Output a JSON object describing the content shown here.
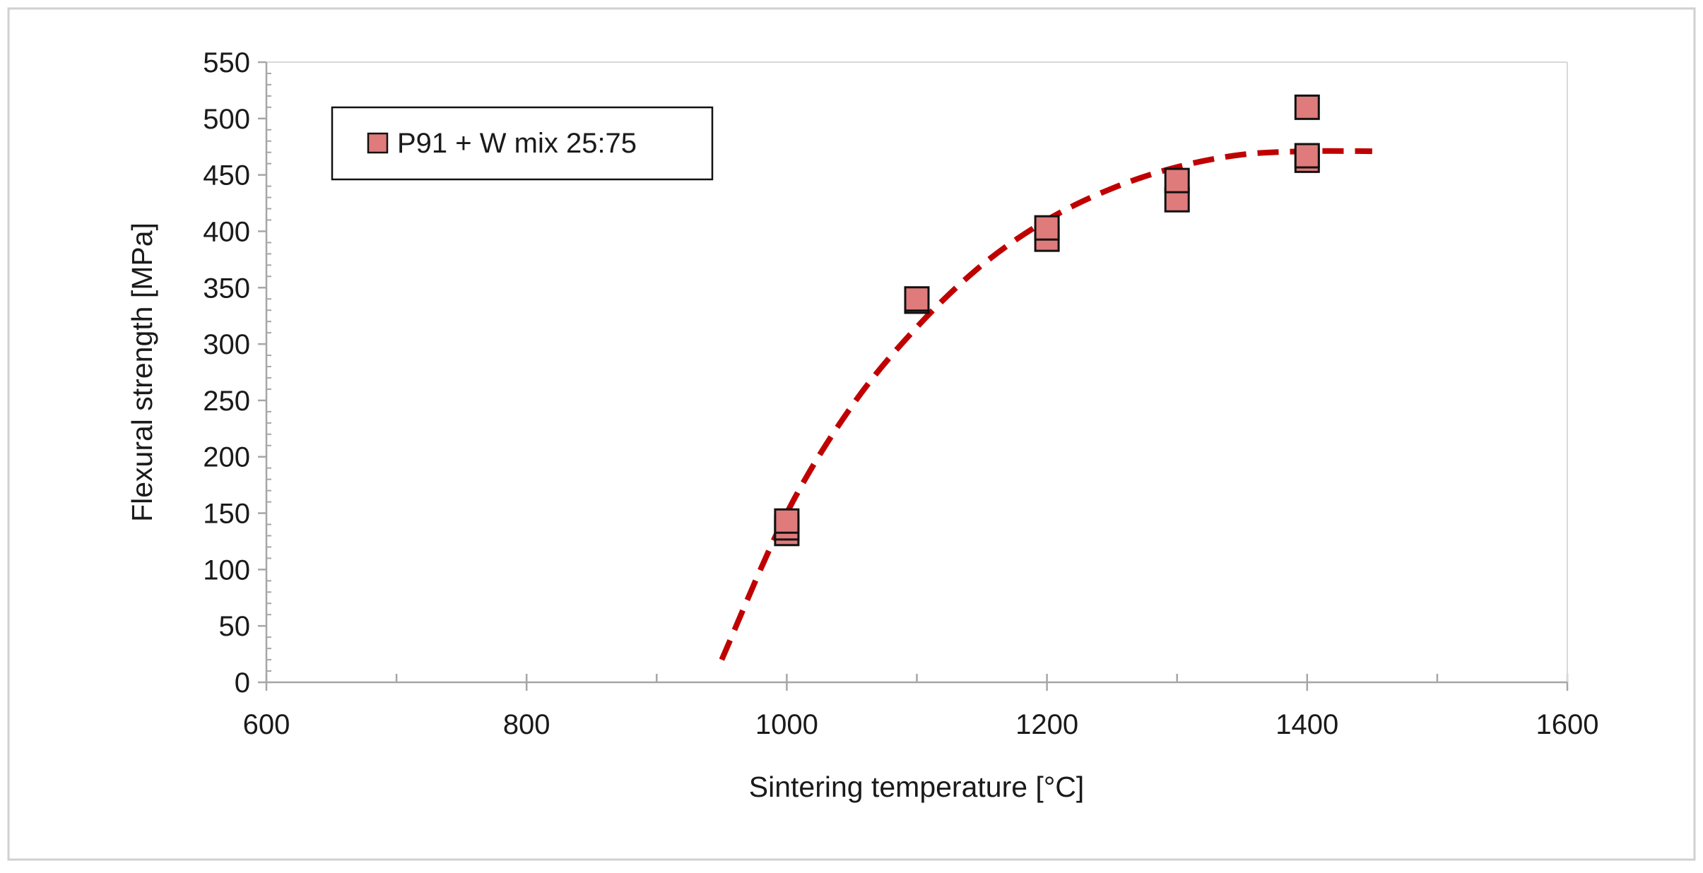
{
  "chart_data": {
    "type": "scatter",
    "title": "",
    "xlabel": "Sintering temperature [°C]",
    "ylabel": "Flexural strength [MPa]",
    "xlim": [
      600,
      1600
    ],
    "ylim": [
      0,
      550
    ],
    "x_ticks": [
      600,
      800,
      1000,
      1200,
      1400,
      1600
    ],
    "x_minor_ticks": [
      700,
      900,
      1100,
      1300,
      1500
    ],
    "y_ticks": [
      0,
      50,
      100,
      150,
      200,
      250,
      300,
      350,
      400,
      450,
      500,
      550
    ],
    "y_minor_step": 10,
    "grid": false,
    "legend_position": "top-left",
    "series": [
      {
        "name": "P91 + W mix 25:75",
        "marker": "square",
        "fill_color": "#e07b7b",
        "edge_color": "#111111",
        "points": [
          {
            "x": 1000,
            "y": 132
          },
          {
            "x": 1000,
            "y": 137
          },
          {
            "x": 1000,
            "y": 143
          },
          {
            "x": 1100,
            "y": 338
          },
          {
            "x": 1100,
            "y": 340
          },
          {
            "x": 1200,
            "y": 393
          },
          {
            "x": 1200,
            "y": 403
          },
          {
            "x": 1300,
            "y": 428
          },
          {
            "x": 1300,
            "y": 445
          },
          {
            "x": 1400,
            "y": 463
          },
          {
            "x": 1400,
            "y": 467
          },
          {
            "x": 1400,
            "y": 510
          }
        ]
      }
    ],
    "trendline": {
      "style": "dashed",
      "color": "#c00000",
      "x_range": [
        950,
        1450
      ],
      "points": [
        {
          "x": 950,
          "y": 20
        },
        {
          "x": 1000,
          "y": 150
        },
        {
          "x": 1050,
          "y": 245
        },
        {
          "x": 1100,
          "y": 315
        },
        {
          "x": 1150,
          "y": 370
        },
        {
          "x": 1200,
          "y": 410
        },
        {
          "x": 1250,
          "y": 438
        },
        {
          "x": 1300,
          "y": 457
        },
        {
          "x": 1350,
          "y": 468
        },
        {
          "x": 1400,
          "y": 471
        },
        {
          "x": 1450,
          "y": 471
        }
      ]
    }
  }
}
